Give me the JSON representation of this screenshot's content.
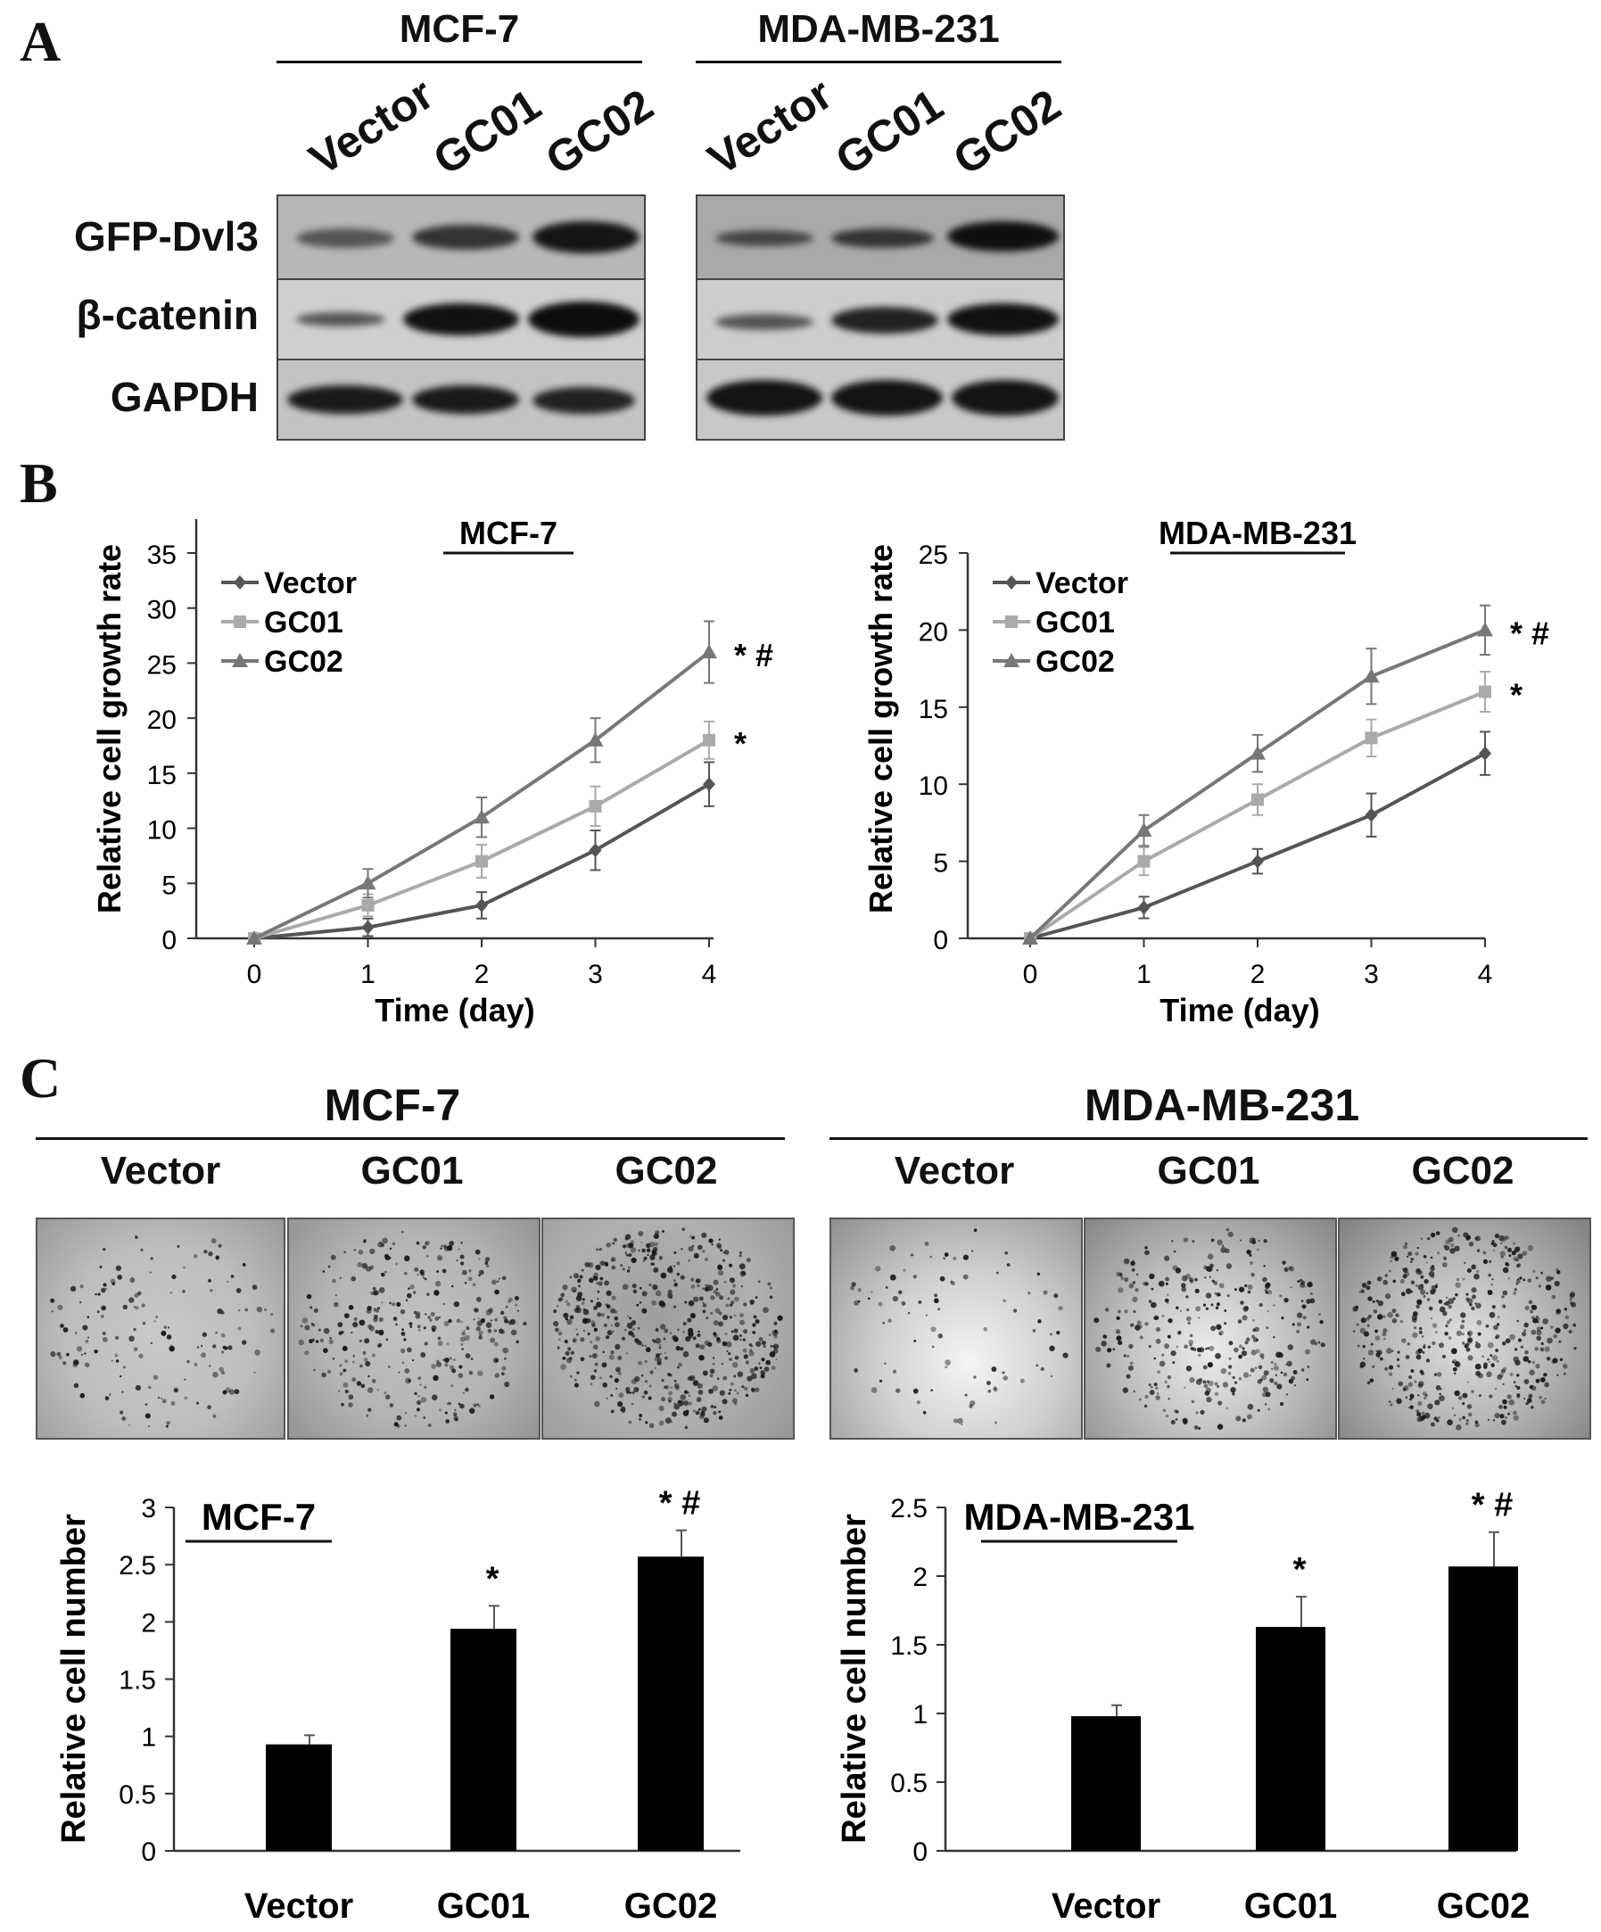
{
  "panels": {
    "a": "A",
    "b": "B",
    "c": "C"
  },
  "western_blot": {
    "cell_lines": [
      "MCF-7",
      "MDA-MB-231"
    ],
    "lanes": [
      "Vector",
      "GC01",
      "GC02"
    ],
    "rows": [
      "GFP-Dvl3",
      "β-catenin",
      "GAPDH"
    ]
  },
  "colony": {
    "cell_lines": [
      "MCF-7",
      "MDA-MB-231"
    ],
    "columns": [
      "Vector",
      "GC01",
      "GC02"
    ]
  },
  "chart_data": [
    {
      "type": "line",
      "title": "MCF-7",
      "xlabel": "Time (day)",
      "ylabel": "Relative cell growth rate",
      "x": [
        0,
        1,
        2,
        3,
        4
      ],
      "xlim": [
        0,
        4
      ],
      "ylim": [
        0,
        35
      ],
      "yticks": [
        0,
        5,
        10,
        15,
        20,
        25,
        30,
        35
      ],
      "series": [
        {
          "name": "Vector",
          "values": [
            0,
            1,
            3,
            8,
            14
          ],
          "errors": [
            0,
            0.8,
            1.2,
            1.8,
            2.0
          ],
          "color": "#555555",
          "marker": "diamond"
        },
        {
          "name": "GC01",
          "values": [
            0,
            3,
            7,
            12,
            18
          ],
          "errors": [
            0,
            1.0,
            1.5,
            1.8,
            1.7
          ],
          "color": "#aaaaaa",
          "marker": "square"
        },
        {
          "name": "GC02",
          "values": [
            0,
            5,
            11,
            18,
            26
          ],
          "errors": [
            0,
            1.3,
            1.8,
            2.0,
            2.8
          ],
          "color": "#777777",
          "marker": "triangle"
        }
      ],
      "annotations": [
        {
          "series": "GC02",
          "text": "* #"
        },
        {
          "series": "GC01",
          "text": "*"
        }
      ],
      "legend": "top-left"
    },
    {
      "type": "line",
      "title": "MDA-MB-231",
      "xlabel": "Time (day)",
      "ylabel": "Relative cell growth rate",
      "x": [
        0,
        1,
        2,
        3,
        4
      ],
      "xlim": [
        0,
        4
      ],
      "ylim": [
        0,
        25
      ],
      "yticks": [
        0,
        5,
        10,
        15,
        20,
        25
      ],
      "series": [
        {
          "name": "Vector",
          "values": [
            0,
            2,
            5,
            8,
            12
          ],
          "errors": [
            0,
            0.7,
            0.8,
            1.4,
            1.4
          ],
          "color": "#555555",
          "marker": "diamond"
        },
        {
          "name": "GC01",
          "values": [
            0,
            5,
            9,
            13,
            16
          ],
          "errors": [
            0,
            0.9,
            1.0,
            1.2,
            1.3
          ],
          "color": "#aaaaaa",
          "marker": "square"
        },
        {
          "name": "GC02",
          "values": [
            0,
            7,
            12,
            17,
            20
          ],
          "errors": [
            0,
            1.0,
            1.2,
            1.8,
            1.6
          ],
          "color": "#777777",
          "marker": "triangle"
        }
      ],
      "annotations": [
        {
          "series": "GC02",
          "text": "* #"
        },
        {
          "series": "GC01",
          "text": "*"
        }
      ],
      "legend": "top-left"
    },
    {
      "type": "bar",
      "title": "MCF-7",
      "xlabel": "",
      "ylabel": "Relative cell number",
      "categories": [
        "Vector",
        "GC01",
        "GC02"
      ],
      "values": [
        0.93,
        1.94,
        2.57
      ],
      "errors": [
        0.08,
        0.2,
        0.23
      ],
      "ylim": [
        0,
        3
      ],
      "yticks": [
        "0",
        "0.5",
        "1",
        "1.5",
        "2",
        "2.5",
        "3"
      ],
      "annotations": [
        "",
        "*",
        "* #"
      ]
    },
    {
      "type": "bar",
      "title": "MDA-MB-231",
      "xlabel": "",
      "ylabel": "Relative cell number",
      "categories": [
        "Vector",
        "GC01",
        "GC02"
      ],
      "values": [
        0.98,
        1.63,
        2.07
      ],
      "errors": [
        0.08,
        0.22,
        0.25
      ],
      "ylim": [
        0,
        2.5
      ],
      "yticks": [
        "0",
        "0.5",
        "1",
        "1.5",
        "2",
        "2.5"
      ],
      "annotations": [
        "",
        "*",
        "* #"
      ]
    }
  ]
}
